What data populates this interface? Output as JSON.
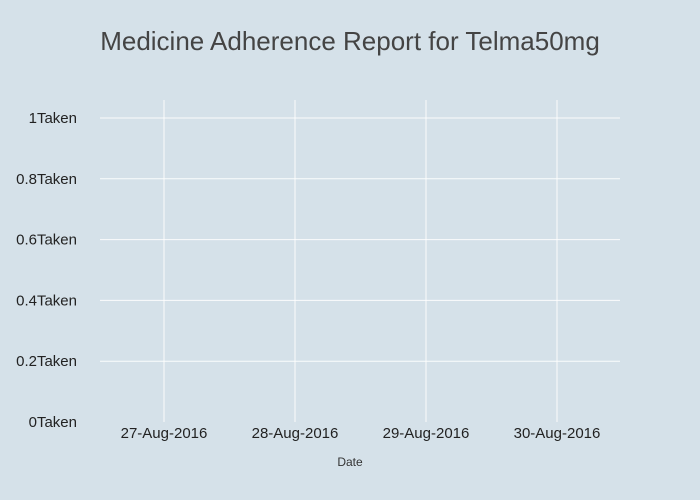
{
  "chart_data": {
    "type": "scatter",
    "title": "Medicine Adherence Report for Telma50mg",
    "xlabel": "Date",
    "ylabel": "",
    "x_categories": [
      "27-Aug-2016",
      "28-Aug-2016",
      "29-Aug-2016",
      "30-Aug-2016"
    ],
    "y_ticks": [
      {
        "value": 0,
        "label": "0Taken"
      },
      {
        "value": 0.2,
        "label": "0.2Taken"
      },
      {
        "value": 0.4,
        "label": "0.4Taken"
      },
      {
        "value": 0.6,
        "label": "0.6Taken"
      },
      {
        "value": 0.8,
        "label": "0.8Taken"
      },
      {
        "value": 1,
        "label": "1Taken"
      }
    ],
    "ylim": [
      0,
      1
    ],
    "series": [],
    "grid": true,
    "colors": {
      "background": "#d5e1e9",
      "grid": "#ffffff",
      "title": "#444444"
    }
  }
}
